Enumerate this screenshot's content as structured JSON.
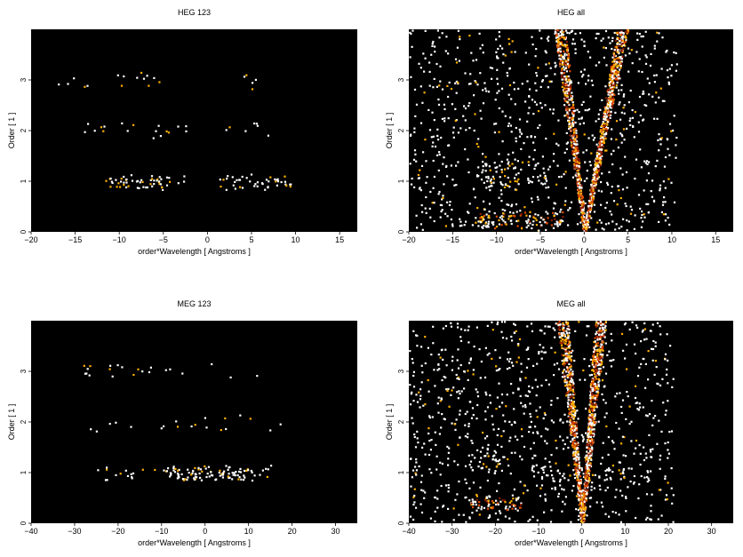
{
  "colors": {
    "background": "#000000",
    "low": "#8a1c00",
    "mid": "#e04a00",
    "high": "#ffb000",
    "peak": "#ffffff"
  },
  "chart_data": [
    {
      "type": "heatmap",
      "title": "HEG 123",
      "xlabel": "order*Wavelength [ Angstroms ]",
      "ylabel": "Order [ 1 ]",
      "xlim": [
        -20,
        17
      ],
      "ylim": [
        0,
        4
      ],
      "xticks": [
        -20,
        -15,
        -10,
        -5,
        0,
        5,
        10,
        15
      ],
      "yticks": [
        0,
        1,
        2,
        3
      ],
      "xtick_labels": [
        "−20",
        "−15",
        "−10",
        "−5",
        "0",
        "5",
        "10",
        "15"
      ],
      "ytick_labels": [
        "0",
        "1",
        "2",
        "3"
      ],
      "grid": false,
      "bands": [
        {
          "order": 1,
          "x_range": [
            -12,
            -2.5
          ],
          "density": 0.55
        },
        {
          "order": 1,
          "x_range": [
            1.2,
            9.5
          ],
          "density": 0.5
        },
        {
          "order": 2,
          "x_range": [
            -16,
            -2
          ],
          "density": 0.12
        },
        {
          "order": 2,
          "x_range": [
            2,
            8
          ],
          "density": 0.1
        },
        {
          "order": 3,
          "x_range": [
            -18,
            -4
          ],
          "density": 0.1
        },
        {
          "order": 3,
          "x_range": [
            3,
            7
          ],
          "density": 0.12
        }
      ],
      "cones": []
    },
    {
      "type": "heatmap",
      "title": "HEG all",
      "xlabel": "order*Wavelength [ Angstroms ]",
      "ylabel": "Order [ 1 ]",
      "xlim": [
        -20,
        17
      ],
      "ylim": [
        0,
        4
      ],
      "xticks": [
        -20,
        -15,
        -10,
        -5,
        0,
        5,
        10,
        15
      ],
      "yticks": [
        0,
        1,
        2,
        3
      ],
      "xtick_labels": [
        "−20",
        "−15",
        "−10",
        "−5",
        "0",
        "5",
        "10",
        "15"
      ],
      "ytick_labels": [
        "0",
        "1",
        "2",
        "3"
      ],
      "grid": false,
      "background_noise": {
        "x_range": [
          -20,
          10.5
        ],
        "density": 0.35
      },
      "bands": [
        {
          "order": 0.25,
          "x_range": [
            -12.5,
            -2.5
          ],
          "density": 0.9
        },
        {
          "order": 1.0,
          "x_range": [
            -12,
            -4
          ],
          "density": 0.45
        },
        {
          "order": 1.3,
          "x_range": [
            -12,
            -7
          ],
          "density": 0.45
        }
      ],
      "cones": [
        {
          "side": "negative",
          "x_at_top": -2.8,
          "density": 0.8
        },
        {
          "side": "positive",
          "x_at_top": 4.3,
          "density": 0.95
        }
      ]
    },
    {
      "type": "heatmap",
      "title": "MEG 123",
      "xlabel": "order*Wavelength [ Angstroms ]",
      "ylabel": "Order [ 1 ]",
      "xlim": [
        -40,
        35
      ],
      "ylim": [
        0,
        4
      ],
      "xticks": [
        -40,
        -30,
        -20,
        -10,
        0,
        10,
        20,
        30
      ],
      "yticks": [
        0,
        1,
        2,
        3
      ],
      "xtick_labels": [
        "−40",
        "−30",
        "−20",
        "−10",
        "0",
        "10",
        "20",
        "30"
      ],
      "ytick_labels": [
        "0",
        "1",
        "2",
        "3"
      ],
      "grid": false,
      "bands": [
        {
          "order": 1,
          "x_range": [
            -25,
            15
          ],
          "density": 0.3
        },
        {
          "order": 1,
          "x_range": [
            -10,
            10
          ],
          "density": 0.55
        },
        {
          "order": 2,
          "x_range": [
            -28,
            18
          ],
          "density": 0.08
        },
        {
          "order": 3,
          "x_range": [
            -28,
            12
          ],
          "density": 0.1
        }
      ],
      "cones": []
    },
    {
      "type": "heatmap",
      "title": "MEG all",
      "xlabel": "order*Wavelength [ Angstroms ]",
      "ylabel": "Order [ 1 ]",
      "xlim": [
        -40,
        35
      ],
      "ylim": [
        0,
        4
      ],
      "xticks": [
        -40,
        -30,
        -20,
        -10,
        0,
        10,
        20,
        30
      ],
      "yticks": [
        0,
        1,
        2,
        3
      ],
      "xtick_labels": [
        "−40",
        "−30",
        "−20",
        "−10",
        "0",
        "10",
        "20",
        "30"
      ],
      "ytick_labels": [
        "0",
        "1",
        "2",
        "3"
      ],
      "grid": false,
      "background_noise": {
        "x_range": [
          -40,
          21
        ],
        "density": 0.35
      },
      "bands": [
        {
          "order": 0.4,
          "x_range": [
            -26,
            -14
          ],
          "density": 0.85
        },
        {
          "order": 1.0,
          "x_range": [
            -12,
            18
          ],
          "density": 0.35
        },
        {
          "order": 1.2,
          "x_range": [
            -25,
            -15
          ],
          "density": 0.4
        }
      ],
      "cones": [
        {
          "side": "negative",
          "x_at_top": -4.5,
          "density": 0.8
        },
        {
          "side": "positive",
          "x_at_top": 4.2,
          "density": 0.95
        }
      ]
    }
  ]
}
